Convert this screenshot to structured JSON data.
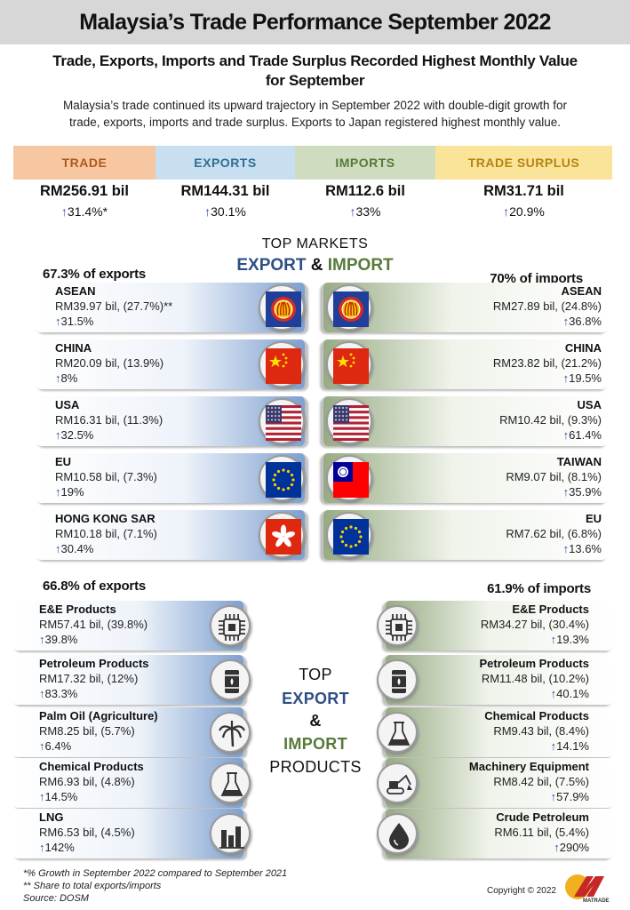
{
  "title": "Malaysia’s Trade Performance September 2022",
  "subtitle_lines": [
    "Trade, Exports, Imports and Trade Surplus Recorded Highest Monthly Value",
    "for September"
  ],
  "intro_lines": [
    "Malaysia’s trade continued its upward trajectory in September 2022 with double-digit growth for",
    "trade, exports, imports and trade surplus.  Exports to Japan registered highest monthly value."
  ],
  "arrow": "↑",
  "kpis": [
    {
      "label": "TRADE",
      "value": "RM256.91 bil",
      "growth": "31.4%*",
      "bg": "#f7c7a1",
      "fg": "#b0581a"
    },
    {
      "label": "EXPORTS",
      "value": "RM144.31 bil",
      "growth": "30.1%",
      "bg": "#c7dff0",
      "fg": "#2f6f93"
    },
    {
      "label": "IMPORTS",
      "value": "RM112.6 bil",
      "growth": "33%",
      "bg": "#cfdcbf",
      "fg": "#567a3a"
    },
    {
      "label": "TRADE  SURPLUS",
      "value": "RM31.71 bil",
      "growth": "20.9%",
      "bg": "#f9e49a",
      "fg": "#b88410"
    }
  ],
  "markets_title": {
    "line1": "TOP MARKETS",
    "export": "EXPORT",
    "amp": "&",
    "import": "IMPORT"
  },
  "export_markets": {
    "share": "67.3% of exports",
    "items": [
      {
        "name": "ASEAN",
        "value": "RM39.97 bil, (27.7%)**",
        "growth": "31.5%",
        "flag": "asean-flag-icon"
      },
      {
        "name": "CHINA",
        "value": "RM20.09 bil, (13.9%)",
        "growth": "8%",
        "flag": "china-flag-icon"
      },
      {
        "name": "USA",
        "value": "RM16.31 bil, (11.3%)",
        "growth": "32.5%",
        "flag": "usa-flag-icon"
      },
      {
        "name": "EU",
        "value": "RM10.58 bil, (7.3%)",
        "growth": "19%",
        "flag": "eu-flag-icon"
      },
      {
        "name": "HONG KONG SAR",
        "value": "RM10.18 bil, (7.1%)",
        "growth": "30.4%",
        "flag": "hong-kong-flag-icon"
      }
    ]
  },
  "import_markets": {
    "share": "70% of imports",
    "items": [
      {
        "name": "ASEAN",
        "value": "RM27.89 bil, (24.8%)",
        "growth": "36.8%",
        "flag": "asean-flag-icon"
      },
      {
        "name": "CHINA",
        "value": "RM23.82 bil, (21.2%)",
        "growth": "19.5%",
        "flag": "china-flag-icon"
      },
      {
        "name": "USA",
        "value": "RM10.42 bil, (9.3%)",
        "growth": "61.4%",
        "flag": "usa-flag-icon"
      },
      {
        "name": "TAIWAN",
        "value": "RM9.07 bil, (8.1%)",
        "growth": "35.9%",
        "flag": "taiwan-flag-icon"
      },
      {
        "name": "EU",
        "value": "RM7.62 bil, (6.8%)",
        "growth": "13.6%",
        "flag": "eu-flag-icon"
      }
    ]
  },
  "products_title": {
    "top": "TOP",
    "export": "EXPORT",
    "amp": "&",
    "import": "IMPORT",
    "products": "PRODUCTS"
  },
  "export_products": {
    "share": "66.8% of exports",
    "items": [
      {
        "name": "E&E Products",
        "value": "RM57.41 bil, (39.8%)",
        "growth": "39.8%",
        "icon": "microchip-icon"
      },
      {
        "name": "Petroleum Products",
        "value": "RM17.32 bil, (12%)",
        "growth": "83.3%",
        "icon": "oil-barrel-icon"
      },
      {
        "name": "Palm Oil (Agriculture)",
        "value": "RM8.25 bil, (5.7%)",
        "growth": "6.4%",
        "icon": "palm-tree-icon"
      },
      {
        "name": "Chemical Products",
        "value": "RM6.93  bil, (4.8%)",
        "growth": "14.5%",
        "icon": "flask-icon"
      },
      {
        "name": "LNG",
        "value": "RM6.53 bil, (4.5%)",
        "growth": "142%",
        "icon": "gas-plant-icon"
      }
    ]
  },
  "import_products": {
    "share": "61.9% of imports",
    "items": [
      {
        "name": "E&E Products",
        "value": "RM34.27 bil, (30.4%)",
        "growth": "19.3%",
        "icon": "microchip-icon"
      },
      {
        "name": "Petroleum Products",
        "value": "RM11.48 bil, (10.2%)",
        "growth": "40.1%",
        "icon": "oil-barrel-icon"
      },
      {
        "name": "Chemical Products",
        "value": "RM9.43  bil, (8.4%)",
        "growth": "14.1%",
        "icon": "flask-icon"
      },
      {
        "name": "Machinery Equipment",
        "value": "RM8.42 bil, (7.5%)",
        "growth": "57.9%",
        "icon": "excavator-icon"
      },
      {
        "name": "Crude Petroleum",
        "value": "RM6.11 bil, (5.4%)",
        "growth": "290%",
        "icon": "oil-drop-icon"
      }
    ]
  },
  "footnotes": [
    "*% Growth  in September 2022 compared to September 2021",
    "** Share to total exports/imports",
    "Source: DOSM"
  ],
  "copyright": "Copyright © 2022",
  "logo_text": "MATRADE",
  "colors": {
    "export_blue": "#2e4f86",
    "import_green": "#577a3b",
    "arrow_blue": "#2c4fb0"
  }
}
